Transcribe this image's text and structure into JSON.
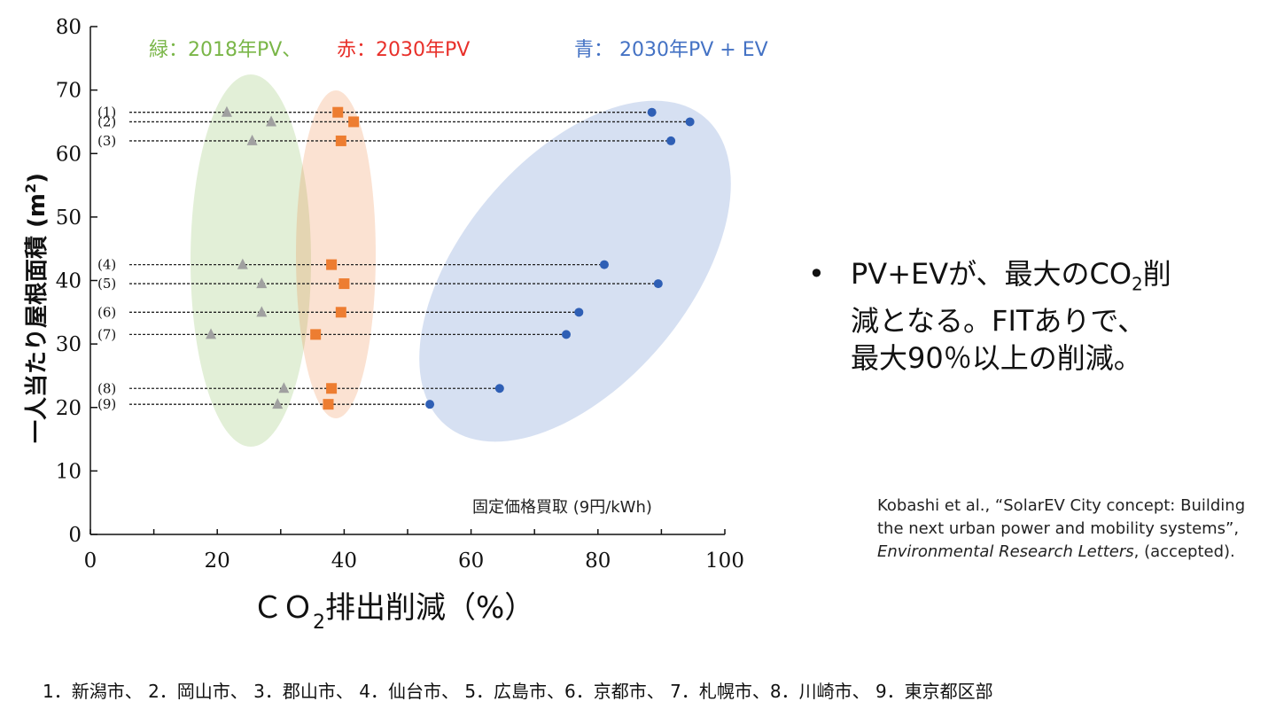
{
  "chart_data": {
    "type": "scatter",
    "xlabel_main": "ＣＯ",
    "xlabel_sub": "2",
    "xlabel_rest": "排出削減（%）",
    "ylabel_main": "一人当たり屋根面積 (m",
    "ylabel_sup": "2",
    "ylabel_end": ")",
    "xlim": [
      0,
      100
    ],
    "ylim": [
      0,
      80
    ],
    "xticks": [
      0,
      20,
      40,
      60,
      80,
      100
    ],
    "yticks": [
      0,
      10,
      20,
      30,
      40,
      50,
      60,
      70,
      80
    ],
    "legend": {
      "green": "緑：2018年PV、",
      "red": "赤：2030年PV",
      "blue": "青： 2030年PV + EV"
    },
    "colors": {
      "green": "#7ab648",
      "red": "#e8302a",
      "blue": "#4472c4",
      "green_marker": "#a0a0a0",
      "red_marker": "#ed7d31",
      "blue_marker": "#2f5fb5"
    },
    "annotation": "固定価格買取 (9円/kWh)",
    "rows": [
      {
        "label": "(1)",
        "y": 66.5,
        "green": 21.5,
        "red": 39,
        "blue": 88.5
      },
      {
        "label": "(2)",
        "y": 65,
        "green": 28.5,
        "red": 41.5,
        "blue": 94.5
      },
      {
        "label": "(3)",
        "y": 62,
        "green": 25.5,
        "red": 39.5,
        "blue": 91.5
      },
      {
        "label": "(4)",
        "y": 42.5,
        "green": 24,
        "red": 38,
        "blue": 81
      },
      {
        "label": "(5)",
        "y": 39.5,
        "green": 27,
        "red": 40,
        "blue": 89.5
      },
      {
        "label": "(6)",
        "y": 35,
        "green": 27,
        "red": 39.5,
        "blue": 77
      },
      {
        "label": "(7)",
        "y": 31.5,
        "green": 19,
        "red": 35.5,
        "blue": 75
      },
      {
        "label": "(8)",
        "y": 23,
        "green": 30.5,
        "red": 38,
        "blue": 64.5
      },
      {
        "label": "(9)",
        "y": 20.5,
        "green": 29.5,
        "red": 37.5,
        "blue": 53.5
      }
    ]
  },
  "bullet": {
    "symbol": "•",
    "line1_pre": "PV+EVが、最大のCO",
    "line1_sub": "2",
    "line1_post": "削",
    "line2": "減となる。FITありで、",
    "line3": "最大90％以上の削減。"
  },
  "citation": {
    "part1": "Kobashi et al., “SolarEV City concept: Building the next urban power and mobility systems”, ",
    "journal": "Environmental Research Letters",
    "part2": ", (accepted)."
  },
  "cities": "1．新潟市、 2．岡山市、 3．郡山市、 4．仙台市、 5．広島市、6．京都市、 7．札幌市、8．川崎市、 9．東京都区部"
}
